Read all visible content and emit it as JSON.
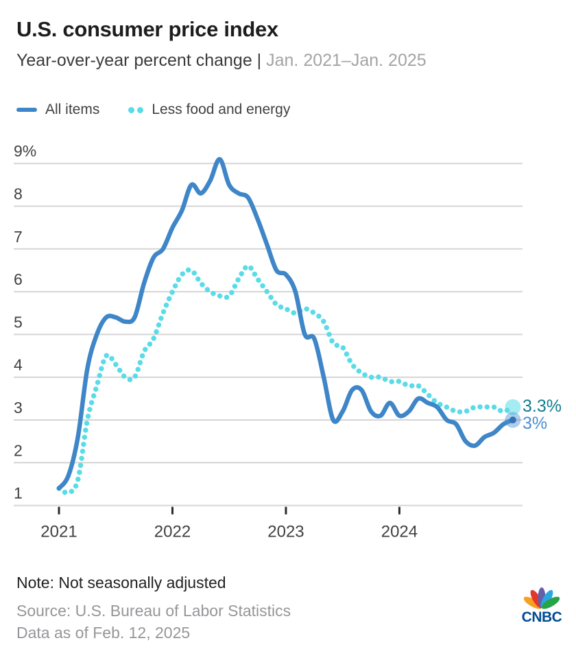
{
  "header": {
    "title": "U.S. consumer price index",
    "subtitle": "Year-over-year percent change |",
    "subtitle_range": "Jan. 2021–Jan. 2025"
  },
  "legend": [
    {
      "label": "All items",
      "style": "solid",
      "color": "#3e86c8"
    },
    {
      "label": "Less food and energy",
      "style": "dotted",
      "color": "#59dbe8"
    }
  ],
  "chart_data": {
    "type": "line",
    "x_unit": "month",
    "x_start": "Jan. 2021",
    "x_end": "Jan. 2025",
    "x_ticks": [
      {
        "month": 0,
        "label": "2021"
      },
      {
        "month": 12,
        "label": "2022"
      },
      {
        "month": 24,
        "label": "2023"
      },
      {
        "month": 36,
        "label": "2024"
      }
    ],
    "y_ticks": [
      {
        "value": 1,
        "label": "1"
      },
      {
        "value": 2,
        "label": "2"
      },
      {
        "value": 3,
        "label": "3"
      },
      {
        "value": 4,
        "label": "4"
      },
      {
        "value": 5,
        "label": "5"
      },
      {
        "value": 6,
        "label": "6"
      },
      {
        "value": 7,
        "label": "7"
      },
      {
        "value": 8,
        "label": "8"
      },
      {
        "value": 9,
        "label": "9%"
      }
    ],
    "ylim": [
      0.5,
      9.5
    ],
    "grid": true,
    "series": [
      {
        "name": "All items",
        "style": "solid",
        "color": "#3e86c8",
        "end_label": "3%",
        "end_label_color": "#4a90d2",
        "values": [
          1.4,
          1.7,
          2.6,
          4.2,
          5.0,
          5.4,
          5.4,
          5.3,
          5.4,
          6.2,
          6.8,
          7.0,
          7.5,
          7.9,
          8.5,
          8.3,
          8.6,
          9.1,
          8.5,
          8.3,
          8.2,
          7.7,
          7.1,
          6.5,
          6.4,
          6.0,
          5.0,
          4.9,
          4.0,
          3.0,
          3.2,
          3.7,
          3.7,
          3.2,
          3.1,
          3.4,
          3.1,
          3.2,
          3.5,
          3.4,
          3.3,
          3.0,
          2.9,
          2.5,
          2.4,
          2.6,
          2.7,
          2.9,
          3.0
        ]
      },
      {
        "name": "Less food and energy",
        "style": "dotted",
        "color": "#59dbe8",
        "end_label": "3.3%",
        "end_label_color": "#0f7d8f",
        "values": [
          1.4,
          1.3,
          1.6,
          3.0,
          3.8,
          4.5,
          4.3,
          4.0,
          4.0,
          4.6,
          4.9,
          5.5,
          6.0,
          6.4,
          6.5,
          6.2,
          6.0,
          5.9,
          5.9,
          6.3,
          6.6,
          6.3,
          6.0,
          5.7,
          5.6,
          5.5,
          5.6,
          5.5,
          5.3,
          4.8,
          4.7,
          4.3,
          4.1,
          4.0,
          4.0,
          3.9,
          3.9,
          3.8,
          3.8,
          3.6,
          3.4,
          3.3,
          3.2,
          3.2,
          3.3,
          3.3,
          3.3,
          3.2,
          3.3
        ]
      }
    ]
  },
  "footer": {
    "note": "Note: Not seasonally adjusted",
    "source": "Source: U.S. Bureau of Labor Statistics",
    "data_as_of": "Data as of Feb. 12, 2025",
    "logo_text": "CNBC",
    "logo_colors": [
      "#f7a120",
      "#e3372e",
      "#655fa9",
      "#2aa7df",
      "#27a348"
    ],
    "logo_text_color": "#014b93"
  }
}
